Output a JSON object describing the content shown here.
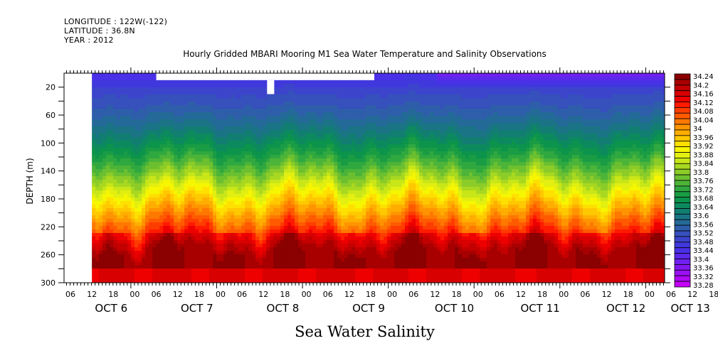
{
  "header": {
    "longitude": "LONGITUDE : 122W(-122)",
    "latitude": "LATITUDE : 36.8N",
    "year": "YEAR : 2012"
  },
  "chart_data": {
    "type": "heatmap",
    "subtype": "filled-contour",
    "title": "Hourly Gridded MBARI Mooring M1 Sea Water Temperature and Salinity Observations",
    "xlabel": "Sea Water Salinity",
    "ylabel": "DEPTH (m)",
    "x_axis": {
      "unit": "hour",
      "start": "OCT 6 06:00",
      "end": "OCT 13 ~05:00",
      "data_start": "OCT 6 12:00",
      "hour_tick_labels": [
        "06",
        "12",
        "18",
        "00",
        "06",
        "12",
        "18",
        "00",
        "06",
        "12",
        "18",
        "00",
        "06",
        "12",
        "18",
        "00",
        "06",
        "12",
        "18",
        "00",
        "06",
        "12",
        "18",
        "00",
        "06",
        "12",
        "18",
        "00",
        "06",
        "12",
        "18",
        "00"
      ],
      "day_labels": [
        {
          "label": "OCT  6",
          "hour": 12
        },
        {
          "label": "OCT  7",
          "hour": 36
        },
        {
          "label": "OCT  8",
          "hour": 60
        },
        {
          "label": "OCT  9",
          "hour": 84
        },
        {
          "label": "OCT 10",
          "hour": 108
        },
        {
          "label": "OCT 11",
          "hour": 132
        },
        {
          "label": "OCT 12",
          "hour": 156
        },
        {
          "label": "OCT 13",
          "hour": 174
        }
      ],
      "hour_range": [
        0,
        167
      ]
    },
    "y_axis": {
      "range": [
        0,
        300
      ],
      "inverted": true,
      "tick_labels": [
        "20",
        "60",
        "100",
        "140",
        "180",
        "220",
        "260",
        "300"
      ],
      "ticks": [
        20,
        40,
        60,
        80,
        100,
        120,
        140,
        160,
        180,
        200,
        220,
        240,
        260,
        280,
        300
      ]
    },
    "colorbar": {
      "levels": [
        "34.24",
        "34.2",
        "34.16",
        "34.12",
        "34.08",
        "34.04",
        "34",
        "33.96",
        "33.92",
        "33.88",
        "33.84",
        "33.8",
        "33.76",
        "33.72",
        "33.68",
        "33.64",
        "33.6",
        "33.56",
        "33.52",
        "33.48",
        "33.44",
        "33.4",
        "33.36",
        "33.32",
        "33.28"
      ],
      "colors_top_to_bottom": [
        "#8b0000",
        "#a80000",
        "#c20000",
        "#d80000",
        "#ee0000",
        "#ff1a00",
        "#ff3c00",
        "#ff5a00",
        "#ff7800",
        "#ff9400",
        "#ffae00",
        "#ffc800",
        "#ffe000",
        "#f6f600",
        "#e2ef10",
        "#c8e618",
        "#a8d820",
        "#8ccc28",
        "#6cc030",
        "#4cb438",
        "#30a840",
        "#1a9c44",
        "#0c944c",
        "#0c8a5e",
        "#127e72",
        "#1a7486",
        "#246a98",
        "#2e5eaa",
        "#3650bc",
        "#3c44cc",
        "#4038dc",
        "#4a30e8",
        "#5c28ec",
        "#7020f0",
        "#8418f2",
        "#9a10f4",
        "#b008f6",
        "#c400f8"
      ]
    },
    "missing_data": [
      {
        "description": "no data before OCT 6 12:00",
        "hours": [
          0,
          6
        ],
        "depth": [
          0,
          300
        ]
      },
      {
        "description": "surface gap",
        "hours": [
          24,
          85
        ],
        "depth": [
          0,
          10
        ]
      },
      {
        "description": "sensor gap",
        "hours": [
          55,
          57
        ],
        "depth": [
          10,
          30
        ]
      }
    ],
    "features": {
      "surface_salinity": "33.40-33.52 (blue/teal)",
      "surface_min_after_oct10": "33.28-33.36 (violet)",
      "halocline_depth_m": "140-180",
      "deep_salinity": "34.12-34.24 near 240-270 m"
    },
    "colorbar_placement": "right"
  }
}
